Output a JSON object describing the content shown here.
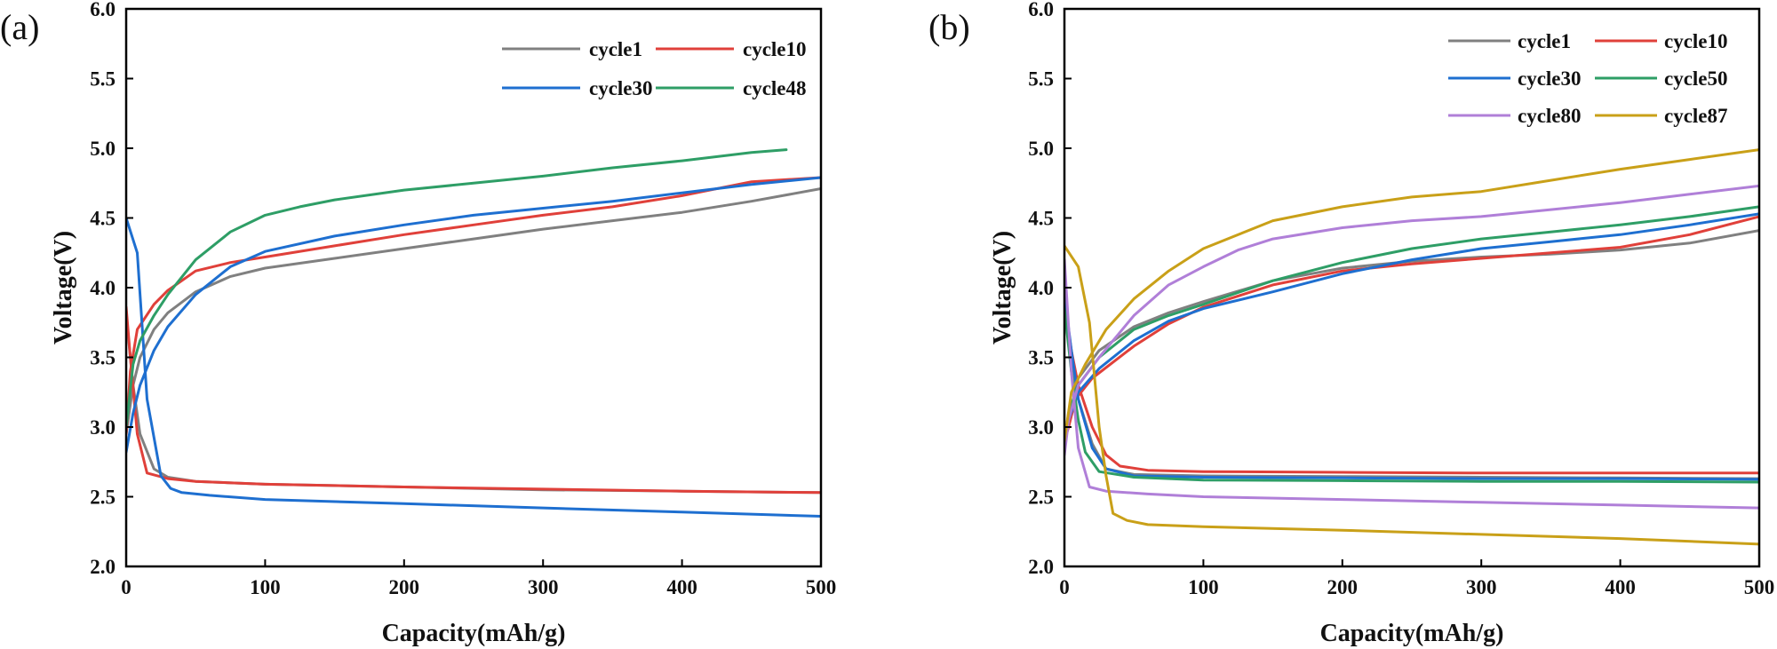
{
  "chart_data": [
    {
      "type": "line",
      "panel_label": "(a)",
      "xlabel": "Capacity(mAh/g)",
      "ylabel": "Voltage(V)",
      "xlim": [
        0,
        500
      ],
      "ylim": [
        2.0,
        6.0
      ],
      "xticks": [
        0,
        100,
        200,
        300,
        400,
        500
      ],
      "yticks": [
        2.0,
        2.5,
        3.0,
        3.5,
        4.0,
        4.5,
        5.0,
        5.5,
        6.0
      ],
      "legend": {
        "placement": "top-right",
        "columns": 2
      },
      "series": [
        {
          "name": "cycle1",
          "color": "#808080",
          "charge": [
            [
              0,
              2.95
            ],
            [
              5,
              3.3
            ],
            [
              10,
              3.5
            ],
            [
              20,
              3.7
            ],
            [
              30,
              3.82
            ],
            [
              50,
              3.97
            ],
            [
              75,
              4.08
            ],
            [
              100,
              4.14
            ],
            [
              150,
              4.21
            ],
            [
              200,
              4.28
            ],
            [
              250,
              4.35
            ],
            [
              300,
              4.42
            ],
            [
              350,
              4.48
            ],
            [
              400,
              4.54
            ],
            [
              450,
              4.62
            ],
            [
              500,
              4.71
            ]
          ],
          "discharge": [
            [
              0,
              3.8
            ],
            [
              5,
              3.3
            ],
            [
              10,
              2.95
            ],
            [
              20,
              2.7
            ],
            [
              30,
              2.64
            ],
            [
              50,
              2.61
            ],
            [
              100,
              2.59
            ],
            [
              200,
              2.57
            ],
            [
              300,
              2.55
            ],
            [
              400,
              2.54
            ],
            [
              500,
              2.53
            ]
          ]
        },
        {
          "name": "cycle10",
          "color": "#e0403a",
          "charge": [
            [
              0,
              2.95
            ],
            [
              3,
              3.4
            ],
            [
              8,
              3.7
            ],
            [
              20,
              3.88
            ],
            [
              30,
              3.98
            ],
            [
              50,
              4.12
            ],
            [
              75,
              4.18
            ],
            [
              100,
              4.22
            ],
            [
              150,
              4.3
            ],
            [
              200,
              4.38
            ],
            [
              250,
              4.45
            ],
            [
              300,
              4.52
            ],
            [
              350,
              4.58
            ],
            [
              400,
              4.66
            ],
            [
              450,
              4.76
            ],
            [
              500,
              4.79
            ]
          ],
          "discharge": [
            [
              0,
              3.86
            ],
            [
              3,
              3.5
            ],
            [
              8,
              2.95
            ],
            [
              15,
              2.67
            ],
            [
              30,
              2.63
            ],
            [
              50,
              2.61
            ],
            [
              100,
              2.59
            ],
            [
              200,
              2.57
            ],
            [
              300,
              2.555
            ],
            [
              400,
              2.54
            ],
            [
              500,
              2.53
            ]
          ]
        },
        {
          "name": "cycle30",
          "color": "#1e6fd0",
          "charge": [
            [
              0,
              2.82
            ],
            [
              5,
              3.1
            ],
            [
              10,
              3.3
            ],
            [
              20,
              3.55
            ],
            [
              30,
              3.72
            ],
            [
              50,
              3.95
            ],
            [
              75,
              4.15
            ],
            [
              100,
              4.26
            ],
            [
              150,
              4.37
            ],
            [
              200,
              4.45
            ],
            [
              250,
              4.52
            ],
            [
              300,
              4.57
            ],
            [
              350,
              4.62
            ],
            [
              400,
              4.68
            ],
            [
              450,
              4.74
            ],
            [
              500,
              4.79
            ]
          ],
          "discharge": [
            [
              0,
              4.5
            ],
            [
              8,
              4.25
            ],
            [
              15,
              3.2
            ],
            [
              25,
              2.65
            ],
            [
              32,
              2.56
            ],
            [
              40,
              2.53
            ],
            [
              60,
              2.51
            ],
            [
              100,
              2.48
            ],
            [
              200,
              2.45
            ],
            [
              300,
              2.42
            ],
            [
              400,
              2.39
            ],
            [
              500,
              2.36
            ]
          ]
        },
        {
          "name": "cycle48",
          "color": "#2e9e66",
          "charge": [
            [
              0,
              3.0
            ],
            [
              5,
              3.45
            ],
            [
              10,
              3.62
            ],
            [
              20,
              3.8
            ],
            [
              30,
              3.95
            ],
            [
              50,
              4.2
            ],
            [
              75,
              4.4
            ],
            [
              100,
              4.52
            ],
            [
              125,
              4.58
            ],
            [
              150,
              4.63
            ],
            [
              200,
              4.7
            ],
            [
              250,
              4.75
            ],
            [
              300,
              4.8
            ],
            [
              350,
              4.86
            ],
            [
              400,
              4.91
            ],
            [
              450,
              4.97
            ],
            [
              475,
              4.99
            ]
          ],
          "discharge": []
        }
      ]
    },
    {
      "type": "line",
      "panel_label": "(b)",
      "xlabel": "Capacity(mAh/g)",
      "ylabel": "Voltage(V)",
      "xlim": [
        0,
        500
      ],
      "ylim": [
        2.0,
        6.0
      ],
      "xticks": [
        0,
        100,
        200,
        300,
        400,
        500
      ],
      "yticks": [
        2.0,
        2.5,
        3.0,
        3.5,
        4.0,
        4.5,
        5.0,
        5.5,
        6.0
      ],
      "legend": {
        "placement": "top-right",
        "columns": 2
      },
      "series": [
        {
          "name": "cycle1",
          "color": "#808080",
          "charge": [
            [
              0,
              2.85
            ],
            [
              3,
              3.05
            ],
            [
              10,
              3.35
            ],
            [
              25,
              3.55
            ],
            [
              50,
              3.72
            ],
            [
              75,
              3.82
            ],
            [
              100,
              3.9
            ],
            [
              150,
              4.05
            ],
            [
              200,
              4.14
            ],
            [
              250,
              4.19
            ],
            [
              300,
              4.22
            ],
            [
              350,
              4.24
            ],
            [
              400,
              4.27
            ],
            [
              450,
              4.32
            ],
            [
              500,
              4.41
            ]
          ],
          "discharge": [
            [
              0,
              3.9
            ],
            [
              5,
              3.5
            ],
            [
              10,
              3.2
            ],
            [
              20,
              2.88
            ],
            [
              30,
              2.7
            ],
            [
              50,
              2.66
            ],
            [
              100,
              2.65
            ],
            [
              200,
              2.645
            ],
            [
              300,
              2.64
            ],
            [
              400,
              2.635
            ],
            [
              500,
              2.63
            ]
          ]
        },
        {
          "name": "cycle10",
          "color": "#e0403a",
          "charge": [
            [
              0,
              2.9
            ],
            [
              3,
              3.0
            ],
            [
              8,
              3.2
            ],
            [
              20,
              3.35
            ],
            [
              50,
              3.58
            ],
            [
              75,
              3.74
            ],
            [
              100,
              3.86
            ],
            [
              150,
              4.02
            ],
            [
              200,
              4.12
            ],
            [
              250,
              4.17
            ],
            [
              300,
              4.21
            ],
            [
              350,
              4.25
            ],
            [
              400,
              4.29
            ],
            [
              450,
              4.38
            ],
            [
              500,
              4.51
            ]
          ],
          "discharge": [
            [
              0,
              3.9
            ],
            [
              5,
              3.55
            ],
            [
              10,
              3.3
            ],
            [
              20,
              3.0
            ],
            [
              30,
              2.8
            ],
            [
              40,
              2.72
            ],
            [
              60,
              2.69
            ],
            [
              100,
              2.68
            ],
            [
              200,
              2.675
            ],
            [
              300,
              2.67
            ],
            [
              400,
              2.67
            ],
            [
              500,
              2.67
            ]
          ]
        },
        {
          "name": "cycle30",
          "color": "#1e6fd0",
          "charge": [
            [
              0,
              2.88
            ],
            [
              3,
              3.05
            ],
            [
              10,
              3.25
            ],
            [
              25,
              3.42
            ],
            [
              50,
              3.62
            ],
            [
              75,
              3.76
            ],
            [
              100,
              3.85
            ],
            [
              150,
              3.97
            ],
            [
              200,
              4.1
            ],
            [
              250,
              4.2
            ],
            [
              300,
              4.28
            ],
            [
              350,
              4.33
            ],
            [
              400,
              4.38
            ],
            [
              450,
              4.45
            ],
            [
              500,
              4.53
            ]
          ],
          "discharge": [
            [
              0,
              3.95
            ],
            [
              5,
              3.55
            ],
            [
              10,
              3.2
            ],
            [
              20,
              2.85
            ],
            [
              30,
              2.7
            ],
            [
              50,
              2.65
            ],
            [
              100,
              2.64
            ],
            [
              200,
              2.635
            ],
            [
              300,
              2.63
            ],
            [
              400,
              2.63
            ],
            [
              500,
              2.625
            ]
          ]
        },
        {
          "name": "cycle50",
          "color": "#2e9e66",
          "charge": [
            [
              0,
              2.9
            ],
            [
              3,
              3.1
            ],
            [
              10,
              3.3
            ],
            [
              25,
              3.5
            ],
            [
              50,
              3.7
            ],
            [
              75,
              3.8
            ],
            [
              100,
              3.88
            ],
            [
              150,
              4.05
            ],
            [
              200,
              4.18
            ],
            [
              250,
              4.28
            ],
            [
              300,
              4.35
            ],
            [
              350,
              4.4
            ],
            [
              400,
              4.45
            ],
            [
              450,
              4.51
            ],
            [
              500,
              4.58
            ]
          ],
          "discharge": [
            [
              0,
              3.85
            ],
            [
              5,
              3.4
            ],
            [
              10,
              3.05
            ],
            [
              15,
              2.82
            ],
            [
              25,
              2.68
            ],
            [
              50,
              2.64
            ],
            [
              100,
              2.62
            ],
            [
              200,
              2.615
            ],
            [
              300,
              2.61
            ],
            [
              400,
              2.61
            ],
            [
              500,
              2.605
            ]
          ]
        },
        {
          "name": "cycle80",
          "color": "#b07fd8",
          "charge": [
            [
              0,
              2.8
            ],
            [
              3,
              3.05
            ],
            [
              10,
              3.3
            ],
            [
              25,
              3.5
            ],
            [
              50,
              3.8
            ],
            [
              75,
              4.02
            ],
            [
              100,
              4.15
            ],
            [
              125,
              4.27
            ],
            [
              150,
              4.35
            ],
            [
              200,
              4.43
            ],
            [
              250,
              4.48
            ],
            [
              300,
              4.51
            ],
            [
              350,
              4.56
            ],
            [
              400,
              4.61
            ],
            [
              450,
              4.67
            ],
            [
              500,
              4.73
            ]
          ],
          "discharge": [
            [
              0,
              4.2
            ],
            [
              5,
              3.4
            ],
            [
              10,
              2.85
            ],
            [
              18,
              2.57
            ],
            [
              30,
              2.54
            ],
            [
              60,
              2.52
            ],
            [
              100,
              2.5
            ],
            [
              200,
              2.48
            ],
            [
              300,
              2.46
            ],
            [
              400,
              2.44
            ],
            [
              500,
              2.42
            ]
          ]
        },
        {
          "name": "cycle87",
          "color": "#c9a018",
          "charge": [
            [
              0,
              2.9
            ],
            [
              5,
              3.25
            ],
            [
              15,
              3.45
            ],
            [
              30,
              3.7
            ],
            [
              50,
              3.92
            ],
            [
              75,
              4.12
            ],
            [
              100,
              4.28
            ],
            [
              150,
              4.48
            ],
            [
              200,
              4.58
            ],
            [
              250,
              4.65
            ],
            [
              300,
              4.69
            ],
            [
              350,
              4.77
            ],
            [
              400,
              4.85
            ],
            [
              450,
              4.92
            ],
            [
              500,
              4.99
            ]
          ],
          "discharge": [
            [
              0,
              4.3
            ],
            [
              10,
              4.15
            ],
            [
              18,
              3.75
            ],
            [
              25,
              3.0
            ],
            [
              30,
              2.65
            ],
            [
              35,
              2.38
            ],
            [
              45,
              2.33
            ],
            [
              60,
              2.3
            ],
            [
              100,
              2.285
            ],
            [
              200,
              2.26
            ],
            [
              300,
              2.23
            ],
            [
              400,
              2.2
            ],
            [
              500,
              2.16
            ]
          ]
        }
      ]
    }
  ]
}
